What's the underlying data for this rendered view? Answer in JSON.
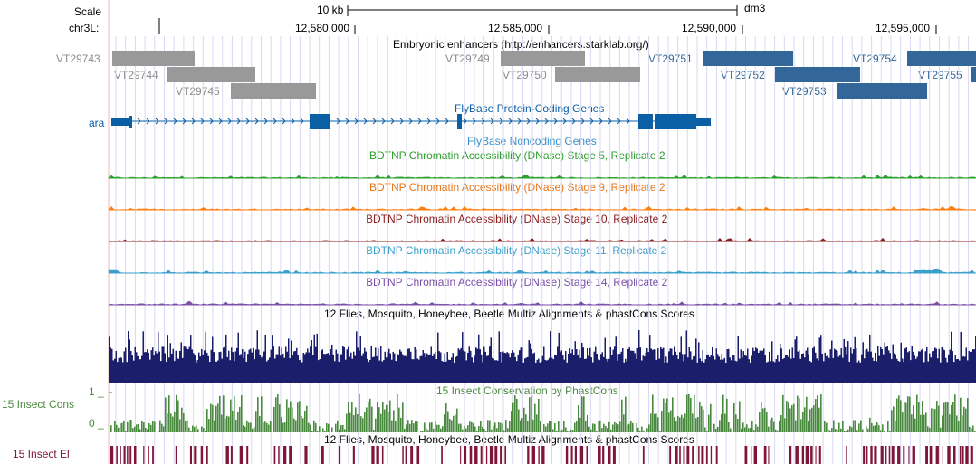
{
  "header": {
    "scale_label": "Scale",
    "chrom_label": "chr3L:",
    "scale_bar_label": "10 kb",
    "assembly": "dm3"
  },
  "ruler": {
    "positions": [
      {
        "label": "12,580,000",
        "bp": 12580000
      },
      {
        "label": "12,585,000",
        "bp": 12585000
      },
      {
        "label": "12,590,000",
        "bp": 12590000
      },
      {
        "label": "12,595,000",
        "bp": 12595000
      }
    ]
  },
  "tracks": {
    "enhancers": {
      "title": "Embryonic enhancers (http://enhancers.starklab.org/)",
      "items": [
        {
          "name": "VT29743",
          "color": "gray"
        },
        {
          "name": "VT29744",
          "color": "gray"
        },
        {
          "name": "VT29745",
          "color": "gray"
        },
        {
          "name": "VT29749",
          "color": "gray"
        },
        {
          "name": "VT29750",
          "color": "gray"
        },
        {
          "name": "VT29751",
          "color": "blue"
        },
        {
          "name": "VT29752",
          "color": "blue"
        },
        {
          "name": "VT29753",
          "color": "blue"
        },
        {
          "name": "VT29754",
          "color": "blue"
        },
        {
          "name": "VT29755",
          "color": "blue"
        }
      ]
    },
    "protein_genes": {
      "title": "FlyBase Protein-Coding Genes",
      "gene": "ara"
    },
    "noncoding_genes": {
      "title": "FlyBase Noncoding Genes"
    },
    "dnase": [
      {
        "title": "BDTNP Chromatin Accessibility (DNase) Stage 5, Replicate 2",
        "color": "#2ca02c"
      },
      {
        "title": "BDTNP Chromatin Accessibility (DNase) Stage 9, Replicate 2",
        "color": "#ff7f0e"
      },
      {
        "title": "BDTNP Chromatin Accessibility (DNase) Stage 10, Replicate 2",
        "color": "#8b1a1a"
      },
      {
        "title": "BDTNP Chromatin Accessibility (DNase) Stage 11, Replicate 2",
        "color": "#3ba0cc"
      },
      {
        "title": "BDTNP Chromatin Accessibility (DNase) Stage 14, Replicate 2",
        "color": "#7b4ea8"
      }
    ],
    "multiz": {
      "title": "12 Flies, Mosquito, Honeybee, Beetle Multiz Alignments & phastCons Scores"
    },
    "phastcons": {
      "title": "15 Insect Conservation by PhastCons",
      "side_label": "15 Insect Cons",
      "max_label": "1 _",
      "min_label": "0 _"
    },
    "elements": {
      "title": "12 Flies, Mosquito, Honeybee, Beetle Multiz Alignments & phastCons Scores",
      "side_label": "15 Insect El"
    }
  },
  "colors": {
    "enhancer_gray": "#999999",
    "enhancer_gray_text": "#8c8c8c",
    "enhancer_blue": "#336699",
    "gene_blue": "#0b5fa5",
    "noncoding_blue": "#3a8fcc",
    "multiz_navy": "#1b1f6b",
    "phastcons_green": "#4a8a3e",
    "elements_maroon": "#80153a",
    "grid": "#d8d8f0"
  }
}
